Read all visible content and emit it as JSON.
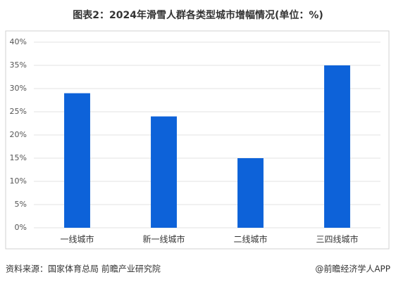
{
  "chart_data": {
    "type": "bar",
    "title": "图表2：2024年滑雪人群各类型城市增幅情况(单位：%)",
    "categories": [
      "一线城市",
      "新一线城市",
      "二线城市",
      "三四线城市"
    ],
    "values": [
      29,
      24,
      15,
      35
    ],
    "color": "#0d62d9",
    "ylim": [
      0,
      40
    ],
    "yticks": [
      {
        "value": 0,
        "label": "0%"
      },
      {
        "value": 5,
        "label": "5%"
      },
      {
        "value": 10,
        "label": "10%"
      },
      {
        "value": 15,
        "label": "15%"
      },
      {
        "value": 20,
        "label": "20%"
      },
      {
        "value": 25,
        "label": "25%"
      },
      {
        "value": 30,
        "label": "30%"
      },
      {
        "value": 35,
        "label": "35%"
      },
      {
        "value": 40,
        "label": "40%"
      }
    ],
    "grid": true,
    "source": "资料来源：国家体育总局 前瞻产业研究院",
    "credit": "@前瞻经济学人APP"
  }
}
